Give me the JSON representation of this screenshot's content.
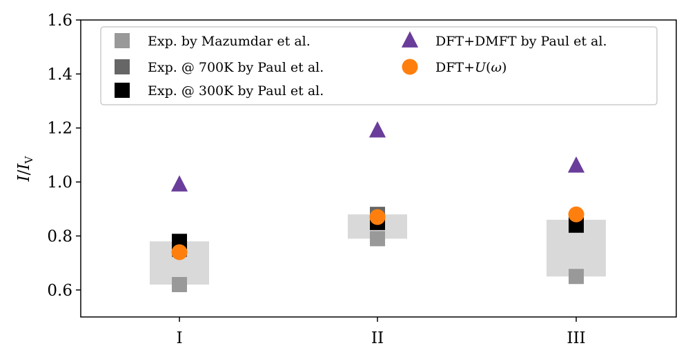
{
  "chart_data": {
    "type": "scatter",
    "categories": [
      "I",
      "II",
      "III"
    ],
    "ylabel": "I/I_V",
    "ylim": [
      0.5,
      1.6
    ],
    "yticks": [
      "0.6",
      "0.8",
      "1.0",
      "1.2",
      "1.4",
      "1.6"
    ],
    "grid": false,
    "legend_placement": "top",
    "ranges": [
      {
        "category": "I",
        "low": 0.62,
        "high": 0.78
      },
      {
        "category": "II",
        "low": 0.79,
        "high": 0.88
      },
      {
        "category": "III",
        "low": 0.65,
        "high": 0.86
      }
    ],
    "series": [
      {
        "name": "Exp. by Mazumdar et al.",
        "marker": "square",
        "color": "#999999",
        "values": [
          0.62,
          0.79,
          0.65
        ]
      },
      {
        "name": "Exp. @ 700K by Paul et al.",
        "marker": "square",
        "color": "#666666",
        "values": [
          0.75,
          0.88,
          0.85
        ]
      },
      {
        "name": "Exp. @ 300K by Paul et al.",
        "marker": "square",
        "color": "#000000",
        "values": [
          0.78,
          0.85,
          0.84
        ]
      },
      {
        "name": "DFT+DMFT by Paul et al.",
        "marker": "triangle",
        "color": "#6a3d9a",
        "values": [
          0.99,
          1.19,
          1.06
        ]
      },
      {
        "name": "DFT+U(ω)",
        "marker": "circle",
        "color": "#ff7f0e",
        "values": [
          0.74,
          0.87,
          0.88
        ]
      }
    ],
    "range_color": "#d9d9d9"
  }
}
